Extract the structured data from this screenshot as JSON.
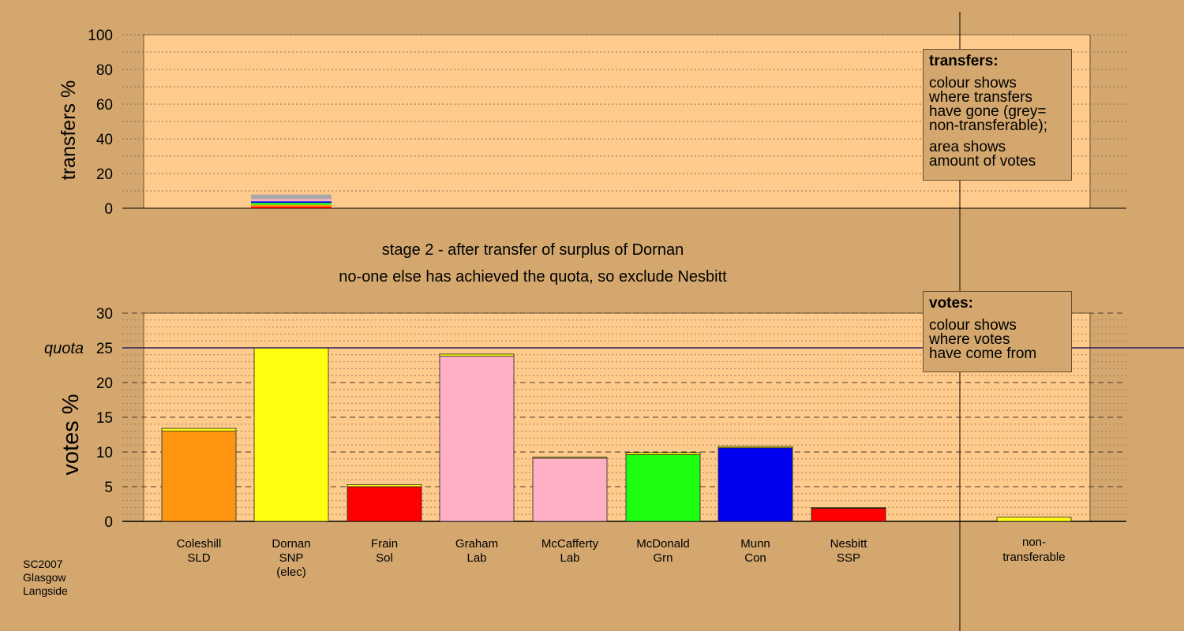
{
  "caption": {
    "line1": "stage 2 - after transfer of surplus of Dornan",
    "line2": "no-one else has achieved the quota, so exclude Nesbitt"
  },
  "legend_transfers": {
    "title": "transfers:",
    "lines": [
      "colour shows",
      "where transfers",
      "have gone (grey=",
      "non-transferable);",
      "area shows",
      "amount of votes"
    ]
  },
  "legend_votes": {
    "title": "votes:",
    "lines": [
      "colour shows",
      "where votes",
      "have come from"
    ]
  },
  "footer": [
    "SC2007",
    "Glasgow",
    "Langside"
  ],
  "chart_data": [
    {
      "type": "bar",
      "ylabel": "transfers %",
      "ylim": [
        0,
        100
      ],
      "yticks": [
        0,
        20,
        40,
        60,
        80,
        100
      ],
      "grid": true,
      "legend_position": "top-right",
      "categories": [
        "Coleshill SLD",
        "Dornan SNP (elec)",
        "Frain Sol",
        "Graham Lab",
        "McCafferty Lab",
        "McDonald Grn",
        "Munn Con",
        "Nesbitt SSP",
        "",
        "non-transferable"
      ],
      "stacks": [
        {
          "category": "Dornan SNP (elec)",
          "segments": [
            {
              "to": "Frain Sol",
              "value": 0.9,
              "color": "#ff0000"
            },
            {
              "to": "Coleshill SLD",
              "value": 1.1,
              "color": "#ff9410"
            },
            {
              "to": "McDonald Grn",
              "value": 1.1,
              "color": "#1dff10"
            },
            {
              "to": "Munn Con",
              "value": 0.9,
              "color": "#0000ee"
            },
            {
              "to": "Graham Lab",
              "value": 1.3,
              "color": "#ffb0c4"
            },
            {
              "to": "non-transferable",
              "value": 2.6,
              "color": "#a8a8a8"
            }
          ]
        }
      ]
    },
    {
      "type": "bar",
      "ylabel": "votes %",
      "ylim": [
        0,
        30
      ],
      "yticks": [
        0,
        5,
        10,
        15,
        20,
        25,
        30
      ],
      "quota": 25,
      "quota_label": "quota",
      "grid": true,
      "legend_position": "top-right",
      "candidates": [
        {
          "name": "Coleshill",
          "party": "SLD",
          "extra": "",
          "first_pref": 13.0,
          "transfer": 0.4,
          "color": "#ff9410"
        },
        {
          "name": "Dornan",
          "party": "SNP",
          "extra": "(elec)",
          "first_pref": 25.0,
          "transfer": 0,
          "color": "#ffff10"
        },
        {
          "name": "Frain",
          "party": "Sol",
          "extra": "",
          "first_pref": 5.0,
          "transfer": 0.3,
          "color": "#ff0000"
        },
        {
          "name": "Graham",
          "party": "Lab",
          "extra": "",
          "first_pref": 23.8,
          "transfer": 0.3,
          "color": "#ffb0c4"
        },
        {
          "name": "McCafferty",
          "party": "Lab",
          "extra": "",
          "first_pref": 9.1,
          "transfer": 0.15,
          "color": "#ffb0c4"
        },
        {
          "name": "McDonald",
          "party": "Grn",
          "extra": "",
          "first_pref": 9.6,
          "transfer": 0.3,
          "color": "#1dff10"
        },
        {
          "name": "Munn",
          "party": "Con",
          "extra": "",
          "first_pref": 10.6,
          "transfer": 0.2,
          "color": "#0000ee"
        },
        {
          "name": "Nesbitt",
          "party": "SSP",
          "extra": "",
          "first_pref": 1.9,
          "transfer": 0.1,
          "color": "#ff0000"
        }
      ],
      "non_transferable": {
        "label_lines": [
          "non-",
          "transferable"
        ],
        "value": 0.6,
        "color": "#ffff10"
      }
    }
  ]
}
